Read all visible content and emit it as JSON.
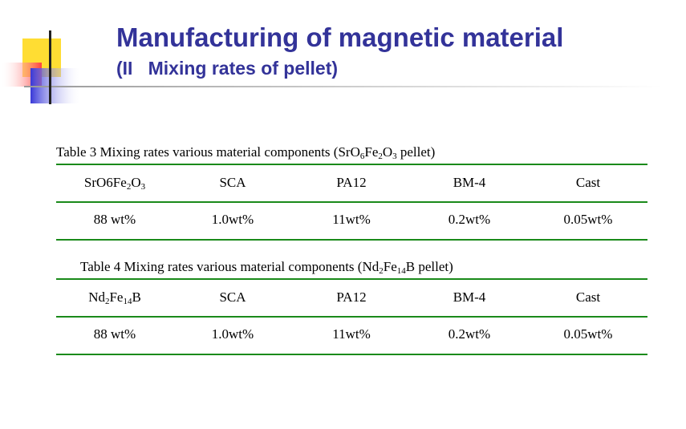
{
  "header": {
    "title": "Manufacturing of magnetic material",
    "subtitle": "(II   Mixing rates of pellet)"
  },
  "tables": [
    {
      "caption": [
        "Table 3 Mixing rates various material components (SrO",
        "6",
        "Fe",
        "2",
        "O",
        "3",
        " pellet)"
      ],
      "columns": [
        [
          "SrO6Fe",
          "2",
          "O",
          "3"
        ],
        [
          "SCA"
        ],
        [
          "PA12"
        ],
        [
          "BM-4"
        ],
        [
          "Cast"
        ]
      ],
      "row": [
        "88 wt%",
        "1.0wt%",
        "11wt%",
        "0.2wt%",
        "0.05wt%"
      ]
    },
    {
      "caption": [
        "Table 4 Mixing rates various material components (Nd",
        "2",
        "Fe",
        "14",
        "B pellet)"
      ],
      "columns": [
        [
          "Nd",
          "2",
          "Fe",
          "14",
          "B"
        ],
        [
          "SCA"
        ],
        [
          "PA12"
        ],
        [
          "BM-4"
        ],
        [
          "Cast"
        ]
      ],
      "row": [
        "88 wt%",
        "1.0wt%",
        "11wt%",
        "0.2wt%",
        "0.05wt%"
      ]
    }
  ]
}
